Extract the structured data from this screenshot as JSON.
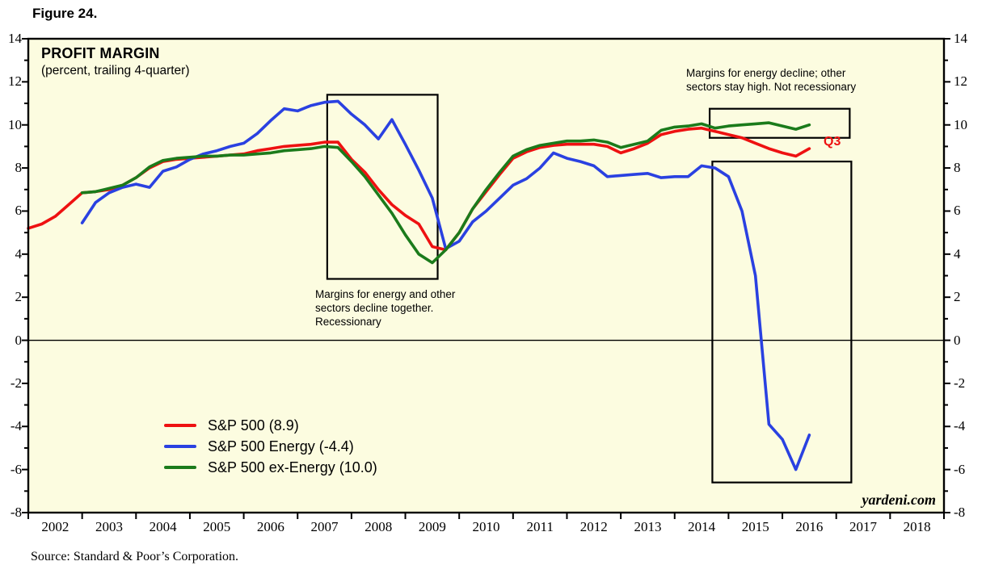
{
  "figure_label": "Figure 24.",
  "chart": {
    "title": "PROFIT MARGIN",
    "subtitle": "(percent, trailing 4-quarter)",
    "q3_label": "Q3",
    "watermark": "yardeni.com",
    "source": "Source: Standard & Poor’s Corporation.",
    "annotations": {
      "recessionary": "Margins for energy and other\nsectors decline together.\nRecessionary",
      "not_recessionary": "Margins for energy decline; other\nsectors stay high. Not recessionary"
    }
  },
  "chart_data": {
    "type": "line",
    "title": "PROFIT MARGIN",
    "subtitle": "(percent, trailing 4-quarter)",
    "x_range": [
      2002,
      2019
    ],
    "y_range": [
      -8,
      14
    ],
    "grid": false,
    "plot_bg": "#FCFCE0",
    "frame_color": "#000000",
    "legend_position": "inside-bottom-left",
    "y_tick_labels": [
      14,
      12,
      10,
      8,
      6,
      4,
      2,
      0,
      -2,
      -4,
      -6,
      -8
    ],
    "x_year_labels": [
      2002,
      2003,
      2004,
      2005,
      2006,
      2007,
      2008,
      2009,
      2010,
      2011,
      2012,
      2013,
      2014,
      2015,
      2016,
      2017,
      2018
    ],
    "series": [
      {
        "id": "sp500",
        "name": "S&P 500 (8.9)",
        "color": "#EE1111",
        "final_label": "Q3",
        "final_value": 8.9,
        "x_start": 2002.0,
        "x_step": 0.25,
        "values": [
          5.2,
          5.4,
          5.75,
          6.3,
          6.85,
          6.9,
          7.0,
          7.2,
          7.55,
          8.0,
          8.3,
          8.4,
          8.45,
          8.5,
          8.55,
          8.6,
          8.65,
          8.8,
          8.9,
          9.0,
          9.05,
          9.1,
          9.2,
          9.2,
          8.4,
          7.8,
          7.0,
          6.3,
          5.8,
          5.4,
          4.35,
          4.2,
          5.0,
          6.1,
          6.9,
          7.7,
          8.45,
          8.75,
          8.95,
          9.05,
          9.1,
          9.1,
          9.1,
          9.0,
          8.7,
          8.9,
          9.15,
          9.55,
          9.7,
          9.8,
          9.85,
          9.7,
          9.55,
          9.4,
          9.15,
          8.9,
          8.7,
          8.55,
          8.9
        ]
      },
      {
        "id": "sp500-energy",
        "name": "S&P 500 Energy (-4.4)",
        "color": "#2A41E1",
        "final_value": -4.4,
        "x_start": 2003.0,
        "x_step": 0.25,
        "values": [
          5.45,
          6.4,
          6.85,
          7.1,
          7.25,
          7.1,
          7.85,
          8.05,
          8.4,
          8.65,
          8.8,
          9.0,
          9.15,
          9.6,
          10.2,
          10.75,
          10.65,
          10.9,
          11.05,
          11.1,
          10.5,
          10.0,
          9.35,
          10.25,
          9.1,
          7.9,
          6.6,
          4.25,
          4.6,
          5.5,
          6.0,
          6.6,
          7.2,
          7.5,
          8.0,
          8.7,
          8.45,
          8.3,
          8.1,
          7.6,
          7.65,
          7.7,
          7.75,
          7.55,
          7.6,
          7.6,
          8.1,
          8.0,
          7.6,
          6.0,
          3.0,
          -3.9,
          -4.6,
          -6.0,
          -4.4
        ]
      },
      {
        "id": "sp500-ex-energy",
        "name": "S&P 500 ex-Energy (10.0)",
        "color": "#1B7B1B",
        "final_value": 10.0,
        "x_start": 2003.0,
        "x_step": 0.25,
        "values": [
          6.85,
          6.9,
          7.05,
          7.2,
          7.55,
          8.05,
          8.35,
          8.45,
          8.5,
          8.55,
          8.55,
          8.6,
          8.6,
          8.65,
          8.7,
          8.8,
          8.85,
          8.9,
          9.0,
          8.95,
          8.3,
          7.6,
          6.75,
          5.9,
          4.9,
          4.0,
          3.6,
          4.2,
          5.0,
          6.1,
          7.0,
          7.8,
          8.55,
          8.85,
          9.05,
          9.15,
          9.25,
          9.25,
          9.3,
          9.2,
          8.95,
          9.1,
          9.25,
          9.75,
          9.9,
          9.95,
          10.05,
          9.85,
          9.95,
          10.0,
          10.05,
          10.1,
          9.95,
          9.8,
          10.0
        ]
      }
    ],
    "boxes": [
      {
        "id": "recessionary-box",
        "t1": 2007.55,
        "t2": 2009.6,
        "v1": 2.85,
        "v2": 11.4
      },
      {
        "id": "not-recessionary-box-top",
        "t1": 2014.65,
        "t2": 2017.25,
        "v1": 9.4,
        "v2": 10.75
      },
      {
        "id": "not-recessionary-box-bottom",
        "t1": 2014.7,
        "t2": 2017.28,
        "v1": -6.6,
        "v2": 8.3
      }
    ]
  }
}
